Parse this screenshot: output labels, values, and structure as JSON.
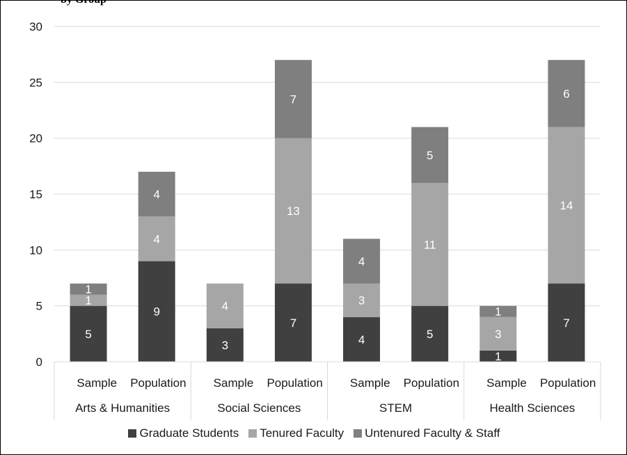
{
  "header": {
    "title_fragment": "by Group"
  },
  "chart_data": {
    "type": "bar",
    "stacked": true,
    "categories": [
      [
        "Sample",
        "Arts & Humanities"
      ],
      [
        "Population",
        "Arts & Humanities"
      ],
      [
        "Sample",
        "Social Sciences"
      ],
      [
        "Population",
        "Social Sciences"
      ],
      [
        "Sample",
        "STEM"
      ],
      [
        "Population",
        "STEM"
      ],
      [
        "Sample",
        "Health Sciences"
      ],
      [
        "Population",
        "Health Sciences"
      ]
    ],
    "x_level1": [
      "Sample",
      "Population",
      "Sample",
      "Population",
      "Sample",
      "Population",
      "Sample",
      "Population"
    ],
    "x_groups": [
      "Arts & Humanities",
      "Social Sciences",
      "STEM",
      "Health Sciences"
    ],
    "series": [
      {
        "name": "Graduate Students",
        "color": "#404040",
        "values": [
          5,
          9,
          3,
          7,
          4,
          5,
          1,
          7
        ]
      },
      {
        "name": "Tenured Faculty",
        "color": "#a6a6a6",
        "values": [
          1,
          4,
          4,
          13,
          3,
          11,
          3,
          14
        ]
      },
      {
        "name": "Untenured Faculty & Staff",
        "color": "#7f7f7f",
        "values": [
          1,
          4,
          0,
          7,
          4,
          5,
          1,
          6
        ]
      }
    ],
    "ylim": [
      0,
      30
    ],
    "yticks": [
      0,
      5,
      10,
      15,
      20,
      25,
      30
    ],
    "grid": true,
    "legend_position": "bottom"
  }
}
